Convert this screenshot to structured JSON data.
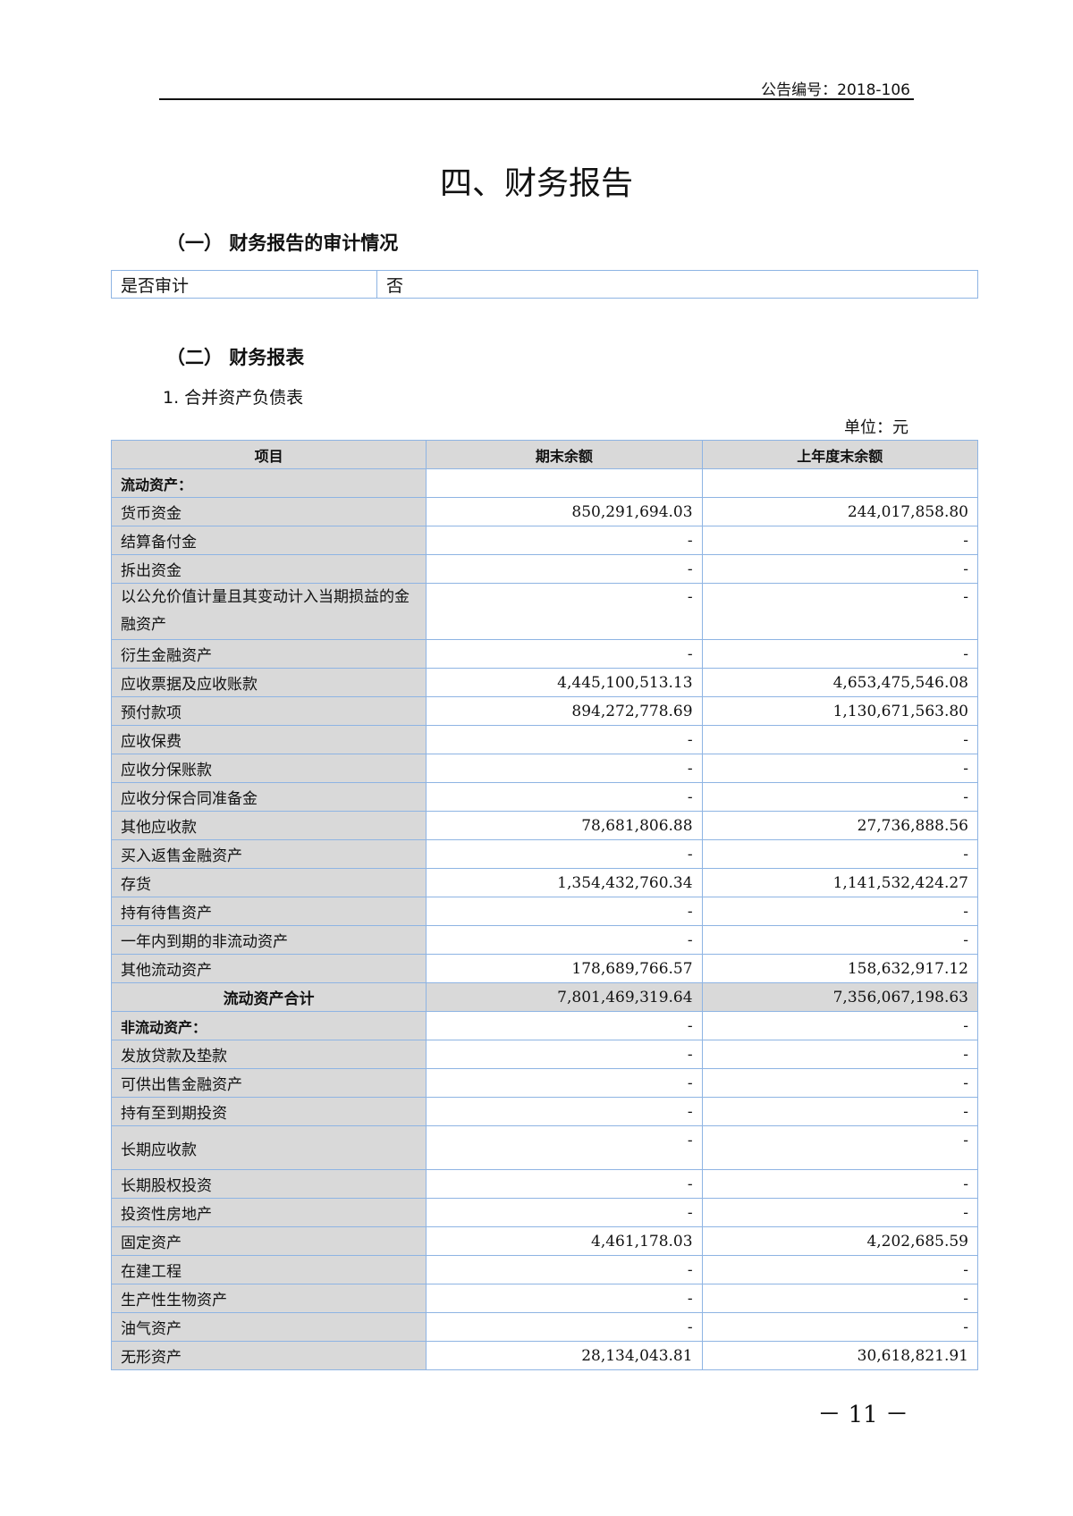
{
  "header": {
    "announcement_no": "公告编号：2018-106"
  },
  "title": "四、财务报告",
  "section1": {
    "heading": "（一） 财务报告的审计情况",
    "label": "是否审计",
    "value": "否"
  },
  "section2": {
    "heading": "（二） 财务报表",
    "subheading": "1.  合并资产负债表",
    "unit": "单位：元"
  },
  "table": {
    "columns": [
      "项目",
      "期末余额",
      "上年度末余额"
    ],
    "rows": [
      {
        "item": "流动资产：",
        "end": "",
        "prev": "",
        "type": "cat"
      },
      {
        "item": "货币资金",
        "end": "850,291,694.03",
        "prev": "244,017,858.80"
      },
      {
        "item": "结算备付金",
        "end": "-",
        "prev": "-"
      },
      {
        "item": "拆出资金",
        "end": "-",
        "prev": "-"
      },
      {
        "item": "以公允价值计量且其变动计入当期损益的金融资产",
        "end": "-",
        "prev": "-",
        "type": "tall2"
      },
      {
        "item": "衍生金融资产",
        "end": "-",
        "prev": "-"
      },
      {
        "item": "应收票据及应收账款",
        "end": "4,445,100,513.13",
        "prev": "4,653,475,546.08"
      },
      {
        "item": "预付款项",
        "end": "894,272,778.69",
        "prev": "1,130,671,563.80"
      },
      {
        "item": "应收保费",
        "end": "-",
        "prev": "-"
      },
      {
        "item": "应收分保账款",
        "end": "-",
        "prev": "-"
      },
      {
        "item": "应收分保合同准备金",
        "end": "-",
        "prev": "-"
      },
      {
        "item": "其他应收款",
        "end": "78,681,806.88",
        "prev": "27,736,888.56"
      },
      {
        "item": "买入返售金融资产",
        "end": "-",
        "prev": "-"
      },
      {
        "item": "存货",
        "end": "1,354,432,760.34",
        "prev": "1,141,532,424.27"
      },
      {
        "item": "持有待售资产",
        "end": "-",
        "prev": "-"
      },
      {
        "item": "一年内到期的非流动资产",
        "end": "-",
        "prev": "-"
      },
      {
        "item": "其他流动资产",
        "end": "178,689,766.57",
        "prev": "158,632,917.12"
      },
      {
        "item": "流动资产合计",
        "end": "7,801,469,319.64",
        "prev": "7,356,067,198.63",
        "type": "total"
      },
      {
        "item": "非流动资产：",
        "end": "-",
        "prev": "-",
        "type": "cat"
      },
      {
        "item": "发放贷款及垫款",
        "end": "-",
        "prev": "-"
      },
      {
        "item": "可供出售金融资产",
        "end": "-",
        "prev": "-"
      },
      {
        "item": "持有至到期投资",
        "end": "-",
        "prev": "-"
      },
      {
        "item": "长期应收款",
        "end": "-",
        "prev": "-",
        "type": "tall1"
      },
      {
        "item": "长期股权投资",
        "end": "-",
        "prev": "-"
      },
      {
        "item": "投资性房地产",
        "end": "-",
        "prev": "-"
      },
      {
        "item": "固定资产",
        "end": "4,461,178.03",
        "prev": "4,202,685.59"
      },
      {
        "item": "在建工程",
        "end": "-",
        "prev": "-"
      },
      {
        "item": "生产性生物资产",
        "end": "-",
        "prev": "-"
      },
      {
        "item": "油气资产",
        "end": "-",
        "prev": "-"
      },
      {
        "item": "无形资产",
        "end": "28,134,043.81",
        "prev": "30,618,821.91"
      }
    ]
  },
  "footer": {
    "page_number": "－ 11 －"
  },
  "colors": {
    "border": "#8eb4e3",
    "shade": "#d9d9d9"
  }
}
